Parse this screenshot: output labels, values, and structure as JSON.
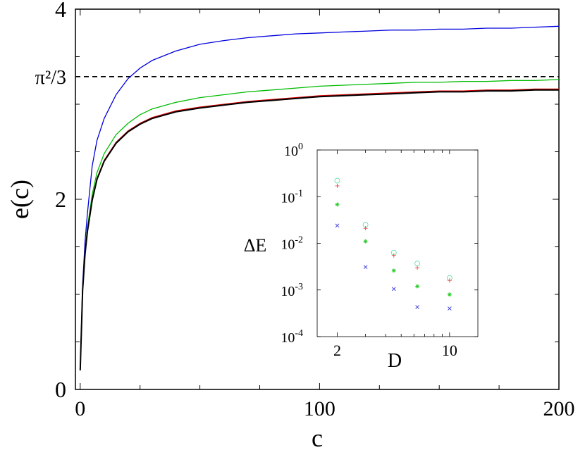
{
  "chart_data": [
    {
      "type": "line",
      "title": "",
      "xlabel": "c",
      "ylabel": "e(c)",
      "xlim": [
        -2,
        200
      ],
      "ylim": [
        0,
        4
      ],
      "x_ticks": [
        "0",
        "100",
        "200"
      ],
      "x_tick_values": [
        0,
        100,
        200
      ],
      "y_ticks": [
        "0",
        "2",
        "4"
      ],
      "y_tick_values": [
        0,
        2,
        4
      ],
      "reference_line": {
        "label": "π²/3",
        "value": 3.29,
        "style": "dashed"
      },
      "x": [
        0,
        1,
        2,
        3,
        5,
        7,
        10,
        15,
        20,
        25,
        30,
        40,
        50,
        60,
        70,
        80,
        90,
        100,
        110,
        120,
        130,
        140,
        150,
        160,
        170,
        180,
        190,
        200
      ],
      "series": [
        {
          "color": "#0000dd",
          "values": [
            0.2,
            1.1,
            1.55,
            1.85,
            2.35,
            2.62,
            2.85,
            3.1,
            3.27,
            3.38,
            3.46,
            3.56,
            3.63,
            3.67,
            3.7,
            3.72,
            3.74,
            3.75,
            3.76,
            3.77,
            3.78,
            3.78,
            3.79,
            3.79,
            3.8,
            3.8,
            3.81,
            3.82
          ]
        },
        {
          "color": "#00bb00",
          "values": [
            0.2,
            1.05,
            1.45,
            1.7,
            2.05,
            2.28,
            2.48,
            2.68,
            2.8,
            2.89,
            2.95,
            3.02,
            3.07,
            3.1,
            3.13,
            3.15,
            3.17,
            3.19,
            3.2,
            3.21,
            3.22,
            3.23,
            3.23,
            3.24,
            3.24,
            3.25,
            3.25,
            3.26
          ]
        },
        {
          "color": "#dd0000",
          "values": [
            0.2,
            1.05,
            1.43,
            1.67,
            2.0,
            2.22,
            2.41,
            2.6,
            2.72,
            2.8,
            2.86,
            2.93,
            2.97,
            3.0,
            3.03,
            3.05,
            3.07,
            3.09,
            3.1,
            3.11,
            3.12,
            3.13,
            3.14,
            3.14,
            3.15,
            3.15,
            3.16,
            3.16
          ]
        },
        {
          "color": "#000000",
          "values": [
            0.2,
            1.04,
            1.42,
            1.66,
            1.99,
            2.21,
            2.4,
            2.59,
            2.71,
            2.79,
            2.85,
            2.92,
            2.96,
            2.99,
            3.02,
            3.04,
            3.06,
            3.08,
            3.09,
            3.1,
            3.11,
            3.12,
            3.13,
            3.13,
            3.14,
            3.14,
            3.15,
            3.15
          ]
        }
      ]
    },
    {
      "type": "scatter",
      "title": "",
      "xlabel": "D",
      "ylabel": "ΔE",
      "x_scale": "log",
      "y_scale": "log",
      "xlim": [
        1.5,
        15
      ],
      "ylim": [
        0.0001,
        1
      ],
      "x_ticks": [
        "2",
        "10"
      ],
      "x_tick_values": [
        2,
        10
      ],
      "y_ticks": [
        {
          "base": "10",
          "exp": "0",
          "value": 1
        },
        {
          "base": "10",
          "exp": "-1",
          "value": 0.1
        },
        {
          "base": "10",
          "exp": "-2",
          "value": 0.01
        },
        {
          "base": "10",
          "exp": "-3",
          "value": 0.001
        },
        {
          "base": "10",
          "exp": "-4",
          "value": 0.0001
        }
      ],
      "series": [
        {
          "marker": "circle",
          "color": "#66ddaa",
          "x": [
            2,
            3,
            4.5,
            6.3,
            10
          ],
          "y": [
            0.22,
            0.025,
            0.0063,
            0.0037,
            0.0018
          ]
        },
        {
          "marker": "plus",
          "color": "#ee4444",
          "x": [
            2,
            3,
            4.5,
            6.3,
            10
          ],
          "y": [
            0.17,
            0.021,
            0.0055,
            0.003,
            0.0016
          ]
        },
        {
          "marker": "star",
          "color": "#22cc22",
          "x": [
            2,
            3,
            4.5,
            6.3,
            10
          ],
          "y": [
            0.068,
            0.011,
            0.0026,
            0.0012,
            0.0008
          ]
        },
        {
          "marker": "x",
          "color": "#3333dd",
          "x": [
            2,
            3,
            4.5,
            6.3,
            10
          ],
          "y": [
            0.024,
            0.0031,
            0.00105,
            0.00043,
            0.0004
          ]
        }
      ]
    }
  ]
}
